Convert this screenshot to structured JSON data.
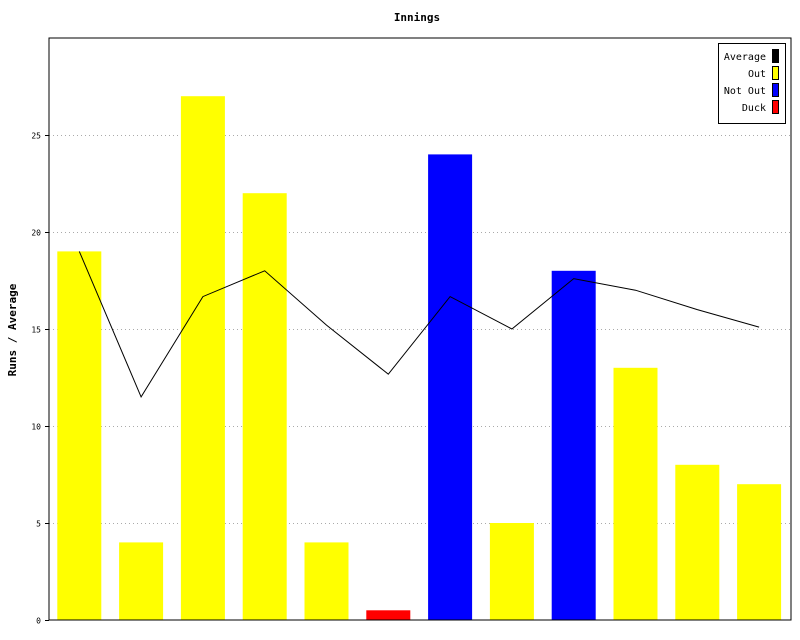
{
  "chart_data": {
    "type": "bar",
    "title": "Innings",
    "xlabel": "",
    "ylabel": "Runs / Average",
    "ylim": [
      0,
      30
    ],
    "yticks": [
      0,
      5,
      10,
      15,
      20,
      25
    ],
    "grid": true,
    "legend_position": "top-right",
    "legend": [
      {
        "label": "Average",
        "color": "#000000"
      },
      {
        "label": "Out",
        "color": "#ffff00"
      },
      {
        "label": "Not Out",
        "color": "#0000ff"
      },
      {
        "label": "Duck",
        "color": "#ff0000"
      }
    ],
    "bars": [
      {
        "value": 19,
        "status": "Out"
      },
      {
        "value": 4,
        "status": "Out"
      },
      {
        "value": 27,
        "status": "Out"
      },
      {
        "value": 22,
        "status": "Out"
      },
      {
        "value": 4,
        "status": "Out"
      },
      {
        "value": 0.5,
        "status": "Duck"
      },
      {
        "value": 24,
        "status": "Not Out"
      },
      {
        "value": 5,
        "status": "Out"
      },
      {
        "value": 18,
        "status": "Not Out"
      },
      {
        "value": 13,
        "status": "Out"
      },
      {
        "value": 8,
        "status": "Out"
      },
      {
        "value": 7,
        "status": "Out"
      }
    ],
    "series": [
      {
        "name": "Average",
        "type": "line",
        "values": [
          19,
          11.5,
          16.67,
          18,
          15.2,
          12.67,
          16.67,
          15,
          17.6,
          17,
          16,
          15.1
        ]
      }
    ]
  }
}
